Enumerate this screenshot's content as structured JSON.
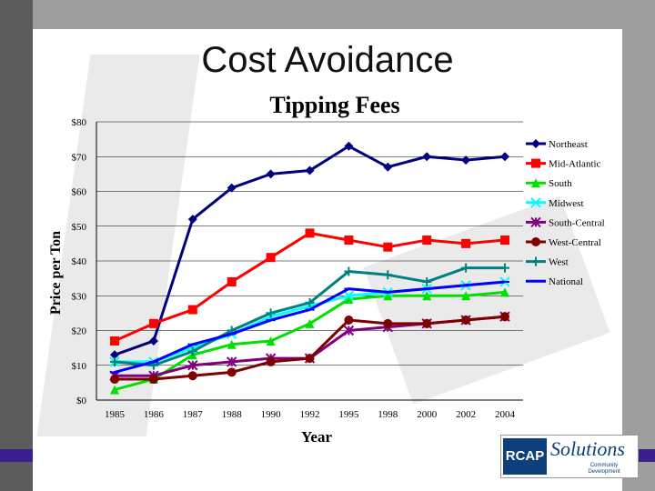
{
  "slide": {
    "title": "Cost Avoidance"
  },
  "logo": {
    "brand_short": "RCAP",
    "brand_script": "Solutions",
    "tagline_line1": "Community",
    "tagline_line2": "Development"
  },
  "colors": {
    "background": "#9e9e9e",
    "plate": "#ffffff",
    "bottom_bar": "#3b1f8c"
  },
  "chart_data": {
    "type": "line",
    "title": "Tipping Fees",
    "xlabel": "Year",
    "ylabel": "Price per Ton",
    "categories": [
      "1985",
      "1986",
      "1987",
      "1988",
      "1990",
      "1992",
      "1995",
      "1998",
      "2000",
      "2002",
      "2004"
    ],
    "ylim": [
      0,
      80
    ],
    "y_ticks": [
      0,
      10,
      20,
      30,
      40,
      50,
      60,
      70,
      80
    ],
    "y_tick_labels": [
      "$0",
      "$10",
      "$20",
      "$30",
      "$40",
      "$50",
      "$60",
      "$70",
      "$80"
    ],
    "grid": true,
    "legend_position": "right",
    "series": [
      {
        "name": "Northeast",
        "color": "#000080",
        "marker": "diamond",
        "values": [
          13,
          17,
          52,
          61,
          65,
          66,
          73,
          67,
          70,
          69,
          70
        ]
      },
      {
        "name": "Mid-Atlantic",
        "color": "#ff0000",
        "marker": "square",
        "values": [
          17,
          22,
          26,
          34,
          41,
          48,
          46,
          44,
          46,
          45,
          46
        ]
      },
      {
        "name": "South",
        "color": "#00e000",
        "marker": "triangle",
        "values": [
          3,
          6,
          13,
          16,
          17,
          22,
          29,
          30,
          30,
          30,
          31
        ]
      },
      {
        "name": "Midwest",
        "color": "#00ffff",
        "marker": "x",
        "values": [
          11,
          11,
          15,
          19,
          24,
          27,
          30,
          31,
          32,
          33,
          34
        ]
      },
      {
        "name": "South-Central",
        "color": "#800080",
        "marker": "star",
        "values": [
          7,
          7,
          10,
          11,
          12,
          12,
          20,
          21,
          22,
          23,
          24
        ]
      },
      {
        "name": "West-Central",
        "color": "#800000",
        "marker": "circle",
        "values": [
          6,
          6,
          7,
          8,
          11,
          12,
          23,
          22,
          22,
          23,
          24
        ]
      },
      {
        "name": "West",
        "color": "#008080",
        "marker": "plus",
        "values": [
          11,
          10,
          14,
          20,
          25,
          28,
          37,
          36,
          34,
          38,
          38
        ]
      },
      {
        "name": "National",
        "color": "#0000ff",
        "marker": "dash",
        "values": [
          8,
          11,
          16,
          19,
          23,
          26,
          32,
          31,
          32,
          33,
          34
        ]
      }
    ]
  }
}
